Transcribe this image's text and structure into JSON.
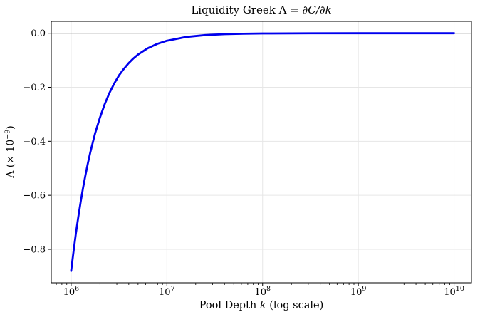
{
  "figure": {
    "title": {
      "prefix": "Liquidity Greek Λ = ",
      "math": "∂C/∂k"
    },
    "xlabel": {
      "prefix": "Pool Depth ",
      "var": "k",
      "suffix": " (log scale)"
    },
    "ylabel": {
      "prefix": "Λ (× 10",
      "exponent": "−9",
      "suffix": ")"
    }
  },
  "chart_data": {
    "type": "line",
    "title": "Liquidity Greek Λ = ∂C/∂k",
    "xlabel": "Pool Depth k (log scale)",
    "ylabel": "Λ (× 10⁻⁹)",
    "y_unit": "×10⁻⁹",
    "x_scale": "log",
    "grid": true,
    "legend": "none",
    "xlim": [
      620000,
      15200000000
    ],
    "ylim": [
      -0.924,
      0.044
    ],
    "x_ticks": [
      1000000,
      10000000,
      100000000,
      1000000000,
      10000000000
    ],
    "x_tick_labels": [
      {
        "base": "10",
        "exp": "6"
      },
      {
        "base": "10",
        "exp": "7"
      },
      {
        "base": "10",
        "exp": "8"
      },
      {
        "base": "10",
        "exp": "9"
      },
      {
        "base": "10",
        "exp": "10"
      }
    ],
    "y_ticks": [
      0.0,
      -0.2,
      -0.4,
      -0.6,
      -0.8
    ],
    "y_tick_labels": [
      "0.0",
      "−0.2",
      "−0.4",
      "−0.6",
      "−0.8"
    ],
    "zero_line": 0,
    "colors": {
      "line": "#0000ee",
      "grid": "#e6e6e6",
      "zero_line": "#888888",
      "spine": "#000000",
      "background": "#ffffff"
    },
    "series": [
      {
        "name": "Lambda",
        "color": "#0000ee",
        "x": [
          1000000,
          1059000,
          1122000,
          1189000,
          1259000,
          1334000,
          1413000,
          1496000,
          1585000,
          1778000,
          2000000,
          2239000,
          2512000,
          2818000,
          3162000,
          3548000,
          3981000,
          4467000,
          5012000,
          6310000,
          7943000,
          10000000,
          15850000,
          25120000,
          39810000,
          63100000,
          100000000,
          316200000,
          1000000000,
          3162000000,
          10000000000
        ],
        "y": [
          -0.88,
          -0.808,
          -0.74,
          -0.679,
          -0.623,
          -0.571,
          -0.524,
          -0.481,
          -0.441,
          -0.371,
          -0.312,
          -0.263,
          -0.221,
          -0.186,
          -0.156,
          -0.132,
          -0.111,
          -0.0932,
          -0.0784,
          -0.0555,
          -0.0393,
          -0.0278,
          -0.0139,
          -0.00699,
          -0.0035,
          -0.00176,
          -0.00088,
          -0.000156,
          -2.78e-05,
          -4.9e-06,
          -9e-07
        ]
      }
    ]
  }
}
